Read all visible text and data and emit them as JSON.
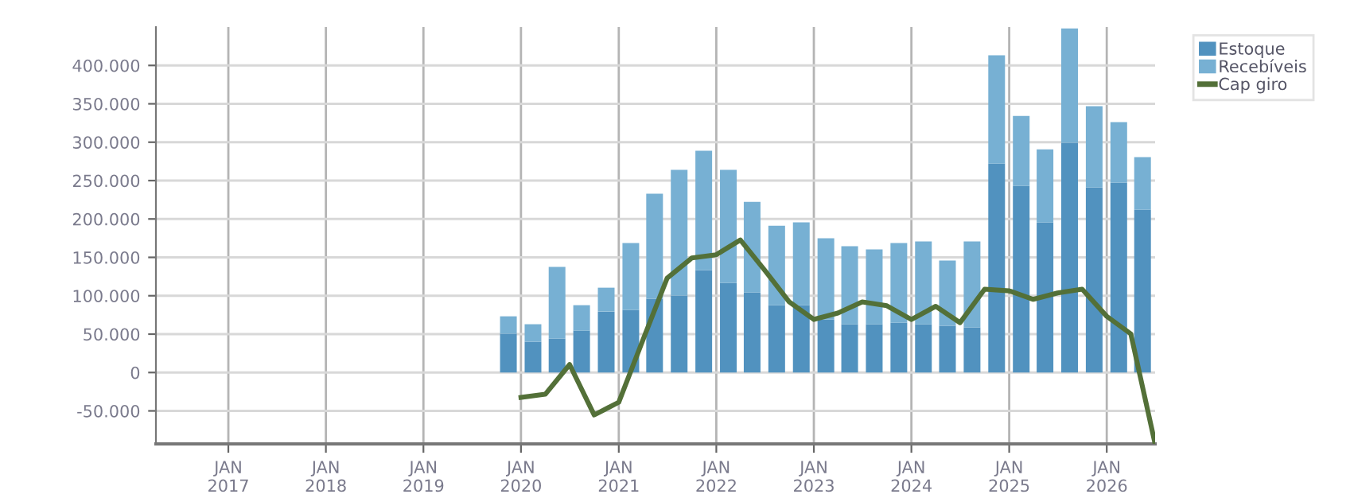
{
  "chart_data": {
    "type": "bar",
    "stacked": true,
    "grid": true,
    "legend": "top right",
    "x": [
      "2019-11-15",
      "2020-02-15",
      "2020-05-15",
      "2020-08-15",
      "2020-11-15",
      "2021-02-15",
      "2021-05-15",
      "2021-08-15",
      "2021-11-15",
      "2022-02-15",
      "2022-05-15",
      "2022-08-15",
      "2022-11-15",
      "2023-02-15",
      "2023-05-15",
      "2023-08-15",
      "2023-11-15",
      "2024-02-15",
      "2024-05-15",
      "2024-08-15",
      "2024-11-15",
      "2025-02-15",
      "2025-05-15",
      "2025-08-15",
      "2025-11-15",
      "2026-02-15",
      "2026-05-15"
    ],
    "series": [
      {
        "name": "Estoque",
        "color": "#5192bf",
        "values": [
          50400,
          40100,
          44200,
          54600,
          79400,
          81500,
          96000,
          100200,
          133300,
          116700,
          104300,
          87700,
          87700,
          69100,
          62900,
          62900,
          64900,
          62900,
          60800,
          58700,
          272200,
          243200,
          195500,
          299100,
          241100,
          247300,
          212100
        ]
      },
      {
        "name": "Recebíveis",
        "color": "#77b0d3",
        "values": [
          22800,
          22800,
          93300,
          33100,
          31100,
          87100,
          136800,
          163700,
          155500,
          147200,
          118100,
          103600,
          107800,
          105700,
          101500,
          97400,
          103700,
          107700,
          85000,
          111900,
          140900,
          91100,
          95300,
          149200,
          105700,
          78800,
          68400
        ]
      },
      {
        "name": "Cap giro",
        "type": "line",
        "color": "#537038",
        "x": [
          "2020-01",
          "2020-04",
          "2020-07",
          "2020-10",
          "2021-01",
          "2021-04",
          "2021-07",
          "2021-10",
          "2022-01",
          "2022-04",
          "2022-07",
          "2022-10",
          "2023-01",
          "2023-04",
          "2023-07",
          "2023-10",
          "2024-01",
          "2024-04",
          "2024-07",
          "2024-10",
          "2025-01",
          "2025-04",
          "2025-07",
          "2025-10",
          "2026-01",
          "2026-04",
          "2026-07"
        ],
        "values": [
          -32500,
          -28300,
          10400,
          -55300,
          -38700,
          42100,
          123000,
          149200,
          153400,
          172700,
          133300,
          91900,
          69100,
          77400,
          91900,
          87000,
          69100,
          86300,
          64900,
          108500,
          106400,
          95300,
          103600,
          108500,
          73200,
          50400,
          -93000
        ]
      }
    ],
    "xlim": [
      "2016-04-05",
      "2026-07-01"
    ],
    "xticks": [
      {
        "value": "2017-01",
        "label": "JAN\n2017"
      },
      {
        "value": "2018-01",
        "label": "JAN\n2018"
      },
      {
        "value": "2019-01",
        "label": "JAN\n2019"
      },
      {
        "value": "2020-01",
        "label": "JAN\n2020"
      },
      {
        "value": "2021-01",
        "label": "JAN\n2021"
      },
      {
        "value": "2022-01",
        "label": "JAN\n2022"
      },
      {
        "value": "2023-01",
        "label": "JAN\n2023"
      },
      {
        "value": "2024-01",
        "label": "JAN\n2024"
      },
      {
        "value": "2025-01",
        "label": "JAN\n2025"
      },
      {
        "value": "2026-01",
        "label": "JAN\n2026"
      }
    ],
    "ylim": [
      -93000,
      450000
    ],
    "yticks": [
      {
        "value": -50000,
        "label": "-50.000"
      },
      {
        "value": 0,
        "label": "0"
      },
      {
        "value": 50000,
        "label": "50.000"
      },
      {
        "value": 100000,
        "label": "100.000"
      },
      {
        "value": 150000,
        "label": "150.000"
      },
      {
        "value": 200000,
        "label": "200.000"
      },
      {
        "value": 250000,
        "label": "250.000"
      },
      {
        "value": 300000,
        "label": "300.000"
      },
      {
        "value": 350000,
        "label": "350.000"
      },
      {
        "value": 400000,
        "label": "400.000"
      }
    ]
  }
}
